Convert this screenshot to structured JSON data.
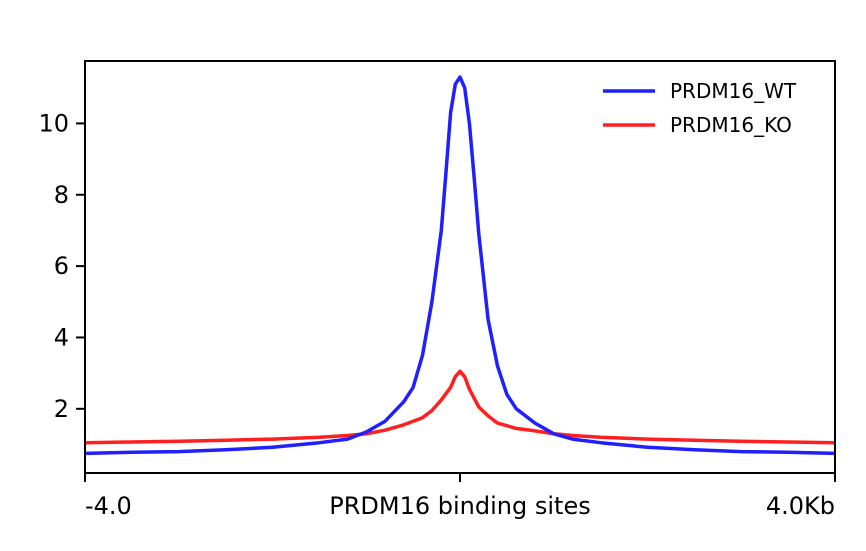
{
  "chart_data": {
    "type": "line",
    "title": "",
    "xlabel": "",
    "ylabel": "",
    "x_tick_labels": {
      "left": "-4.0",
      "center": "PRDM16 binding sites",
      "right": "4.0Kb"
    },
    "xlim": [
      -4,
      4
    ],
    "ylim": [
      0.2,
      11.75
    ],
    "yticks": [
      2,
      4,
      6,
      8,
      10
    ],
    "ytick_labels": [
      "2",
      "4",
      "6",
      "8",
      "10"
    ],
    "grid": false,
    "legend_position": "top-right",
    "colors": {
      "PRDM16_WT": "#1f1fff",
      "PRDM16_KO": "#ff1f1f"
    },
    "series": [
      {
        "name": "PRDM16_WT",
        "color": "#1f1fff",
        "x": [
          -4.0,
          -3.5,
          -3.0,
          -2.5,
          -2.0,
          -1.5,
          -1.2,
          -1.0,
          -0.8,
          -0.6,
          -0.5,
          -0.4,
          -0.3,
          -0.2,
          -0.15,
          -0.1,
          -0.05,
          0.0,
          0.05,
          0.1,
          0.15,
          0.2,
          0.3,
          0.4,
          0.5,
          0.6,
          0.8,
          1.0,
          1.2,
          1.5,
          2.0,
          2.5,
          3.0,
          3.5,
          4.0
        ],
        "values": [
          0.75,
          0.78,
          0.8,
          0.85,
          0.92,
          1.05,
          1.15,
          1.35,
          1.65,
          2.2,
          2.6,
          3.5,
          5.0,
          7.0,
          8.6,
          10.3,
          11.1,
          11.3,
          11.0,
          10.0,
          8.5,
          6.9,
          4.5,
          3.2,
          2.4,
          2.0,
          1.6,
          1.3,
          1.15,
          1.05,
          0.92,
          0.85,
          0.8,
          0.78,
          0.75
        ]
      },
      {
        "name": "PRDM16_KO",
        "color": "#ff1f1f",
        "x": [
          -4.0,
          -3.5,
          -3.0,
          -2.5,
          -2.0,
          -1.5,
          -1.2,
          -1.0,
          -0.8,
          -0.6,
          -0.4,
          -0.3,
          -0.2,
          -0.1,
          -0.05,
          0.0,
          0.05,
          0.1,
          0.2,
          0.3,
          0.4,
          0.6,
          0.8,
          1.0,
          1.2,
          1.5,
          2.0,
          2.5,
          3.0,
          3.5,
          4.0
        ],
        "values": [
          1.05,
          1.07,
          1.09,
          1.12,
          1.15,
          1.2,
          1.25,
          1.3,
          1.4,
          1.55,
          1.75,
          1.95,
          2.25,
          2.6,
          2.9,
          3.05,
          2.9,
          2.55,
          2.05,
          1.8,
          1.6,
          1.45,
          1.38,
          1.3,
          1.25,
          1.2,
          1.15,
          1.12,
          1.09,
          1.07,
          1.05
        ]
      }
    ]
  }
}
